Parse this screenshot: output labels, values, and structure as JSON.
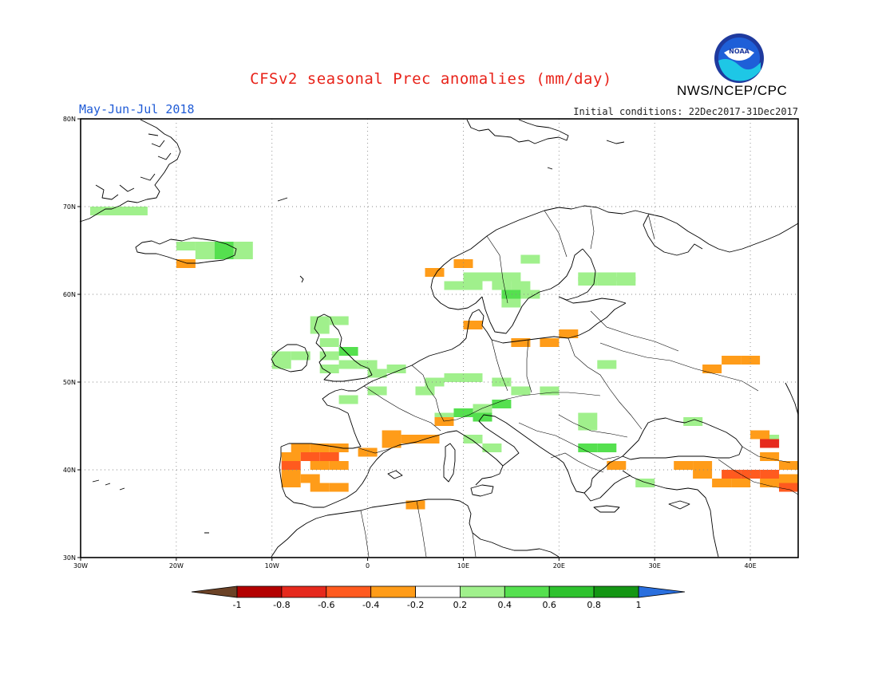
{
  "header": {
    "title": "CFSv2 seasonal Prec anomalies (mm/day)",
    "period": "May-Jun-Jul 2018",
    "initial_conditions": "Initial conditions: 22Dec2017-31Dec2017",
    "agency": "NWS/NCEP/CPC",
    "logo_text": "NOAA",
    "logo_icon": "noaa-logo-icon"
  },
  "map": {
    "lon_range": [
      -30,
      45
    ],
    "lat_range": [
      30,
      80
    ],
    "lat_ticks": [
      {
        "value": 80,
        "label": "80N"
      },
      {
        "value": 70,
        "label": "70N"
      },
      {
        "value": 60,
        "label": "60N"
      },
      {
        "value": 50,
        "label": "50N"
      },
      {
        "value": 40,
        "label": "40N"
      },
      {
        "value": 30,
        "label": "30N"
      }
    ],
    "lon_ticks": [
      {
        "value": -30,
        "label": "30W"
      },
      {
        "value": -20,
        "label": "20W"
      },
      {
        "value": -10,
        "label": "10W"
      },
      {
        "value": 0,
        "label": "0"
      },
      {
        "value": 10,
        "label": "10E"
      },
      {
        "value": 20,
        "label": "20E"
      },
      {
        "value": 30,
        "label": "30E"
      },
      {
        "value": 40,
        "label": "40E"
      }
    ],
    "grid": "dotted",
    "anomaly_cells": [
      {
        "lon": -28,
        "lat": 69.5,
        "cat": "p1"
      },
      {
        "lon": -26,
        "lat": 69.5,
        "cat": "p1"
      },
      {
        "lon": -24,
        "lat": 69.5,
        "cat": "p1"
      },
      {
        "lon": -19,
        "lat": 65.5,
        "cat": "p1"
      },
      {
        "lon": -17,
        "lat": 65.5,
        "cat": "p1"
      },
      {
        "lon": -15,
        "lat": 65.5,
        "cat": "p2"
      },
      {
        "lon": -13,
        "lat": 65.5,
        "cat": "p1"
      },
      {
        "lon": -17,
        "lat": 64.5,
        "cat": "p1"
      },
      {
        "lon": -15,
        "lat": 64.5,
        "cat": "p2"
      },
      {
        "lon": -13,
        "lat": 64.5,
        "cat": "p1"
      },
      {
        "lon": -19,
        "lat": 63.5,
        "cat": "n1"
      },
      {
        "lon": 7,
        "lat": 62.5,
        "cat": "n1"
      },
      {
        "lon": 10,
        "lat": 63.5,
        "cat": "n1"
      },
      {
        "lon": 9,
        "lat": 61,
        "cat": "p1"
      },
      {
        "lon": 11,
        "lat": 61,
        "cat": "p1"
      },
      {
        "lon": 11,
        "lat": 62,
        "cat": "p1"
      },
      {
        "lon": 13,
        "lat": 62,
        "cat": "p1"
      },
      {
        "lon": 14,
        "lat": 61,
        "cat": "p1"
      },
      {
        "lon": 16,
        "lat": 61,
        "cat": "p1"
      },
      {
        "lon": 15,
        "lat": 62,
        "cat": "p1"
      },
      {
        "lon": 15,
        "lat": 60,
        "cat": "p2"
      },
      {
        "lon": 17,
        "lat": 60,
        "cat": "p1"
      },
      {
        "lon": 15,
        "lat": 59,
        "cat": "p1"
      },
      {
        "lon": 17,
        "lat": 64,
        "cat": "p1"
      },
      {
        "lon": 23,
        "lat": 62,
        "cat": "p1"
      },
      {
        "lon": 25,
        "lat": 62,
        "cat": "p1"
      },
      {
        "lon": 27,
        "lat": 62,
        "cat": "p1"
      },
      {
        "lon": 23,
        "lat": 61.5,
        "cat": "p1"
      },
      {
        "lon": 25,
        "lat": 61.5,
        "cat": "p1"
      },
      {
        "lon": 27,
        "lat": 61.5,
        "cat": "p1"
      },
      {
        "lon": 11,
        "lat": 56.5,
        "cat": "n1"
      },
      {
        "lon": -7,
        "lat": 53,
        "cat": "p1"
      },
      {
        "lon": -9,
        "lat": 53,
        "cat": "p1"
      },
      {
        "lon": -9,
        "lat": 52,
        "cat": "p1"
      },
      {
        "lon": -5,
        "lat": 57,
        "cat": "p1"
      },
      {
        "lon": -3,
        "lat": 57,
        "cat": "p1"
      },
      {
        "lon": -5,
        "lat": 56,
        "cat": "p1"
      },
      {
        "lon": -4,
        "lat": 54.5,
        "cat": "p1"
      },
      {
        "lon": -2,
        "lat": 53.5,
        "cat": "p2"
      },
      {
        "lon": -4,
        "lat": 53,
        "cat": "p1"
      },
      {
        "lon": -2,
        "lat": 52,
        "cat": "p1"
      },
      {
        "lon": 0,
        "lat": 52,
        "cat": "p1"
      },
      {
        "lon": -4,
        "lat": 51.5,
        "cat": "p1"
      },
      {
        "lon": 1,
        "lat": 51,
        "cat": "p1"
      },
      {
        "lon": 3,
        "lat": 51.5,
        "cat": "p1"
      },
      {
        "lon": -2,
        "lat": 48,
        "cat": "p1"
      },
      {
        "lon": 1,
        "lat": 49,
        "cat": "p1"
      },
      {
        "lon": 7,
        "lat": 50,
        "cat": "p1"
      },
      {
        "lon": 9,
        "lat": 50.5,
        "cat": "p1"
      },
      {
        "lon": 11,
        "lat": 50.5,
        "cat": "p1"
      },
      {
        "lon": 6,
        "lat": 49,
        "cat": "p1"
      },
      {
        "lon": 14,
        "lat": 50,
        "cat": "p1"
      },
      {
        "lon": 16,
        "lat": 49,
        "cat": "p1"
      },
      {
        "lon": 14,
        "lat": 47.5,
        "cat": "p2"
      },
      {
        "lon": 12,
        "lat": 47,
        "cat": "p1"
      },
      {
        "lon": 10,
        "lat": 46.5,
        "cat": "p2"
      },
      {
        "lon": 12,
        "lat": 46,
        "cat": "p2"
      },
      {
        "lon": 8,
        "lat": 46,
        "cat": "p1"
      },
      {
        "lon": 11,
        "lat": 43.5,
        "cat": "p1"
      },
      {
        "lon": 13,
        "lat": 42.5,
        "cat": "p1"
      },
      {
        "lon": 19,
        "lat": 49,
        "cat": "p1"
      },
      {
        "lon": 25,
        "lat": 52,
        "cat": "p1"
      },
      {
        "lon": 23,
        "lat": 46,
        "cat": "p1"
      },
      {
        "lon": 23,
        "lat": 45,
        "cat": "p1"
      },
      {
        "lon": 23,
        "lat": 42.5,
        "cat": "p2"
      },
      {
        "lon": 25,
        "lat": 42.5,
        "cat": "p2"
      },
      {
        "lon": 29,
        "lat": 38.5,
        "cat": "p1"
      },
      {
        "lon": 34,
        "lat": 45.5,
        "cat": "p1"
      },
      {
        "lon": 42,
        "lat": 43.5,
        "cat": "p1"
      },
      {
        "lon": 16,
        "lat": 54.5,
        "cat": "n1"
      },
      {
        "lon": 19,
        "lat": 54.5,
        "cat": "n1"
      },
      {
        "lon": 21,
        "lat": 55.5,
        "cat": "n1"
      },
      {
        "lon": -7,
        "lat": 42.5,
        "cat": "n1"
      },
      {
        "lon": -5,
        "lat": 42.5,
        "cat": "n1"
      },
      {
        "lon": -3,
        "lat": 42.5,
        "cat": "n1"
      },
      {
        "lon": -8,
        "lat": 41.5,
        "cat": "n1"
      },
      {
        "lon": -6,
        "lat": 41.5,
        "cat": "n3"
      },
      {
        "lon": -4,
        "lat": 41.5,
        "cat": "n3"
      },
      {
        "lon": -8,
        "lat": 40.5,
        "cat": "n3"
      },
      {
        "lon": -5,
        "lat": 40.5,
        "cat": "n1"
      },
      {
        "lon": -3,
        "lat": 40.5,
        "cat": "n1"
      },
      {
        "lon": -8,
        "lat": 39.5,
        "cat": "n1"
      },
      {
        "lon": -8,
        "lat": 38.5,
        "cat": "n1"
      },
      {
        "lon": -6,
        "lat": 39,
        "cat": "n1"
      },
      {
        "lon": -5,
        "lat": 38,
        "cat": "n1"
      },
      {
        "lon": -3,
        "lat": 38,
        "cat": "n1"
      },
      {
        "lon": 0,
        "lat": 42,
        "cat": "n1"
      },
      {
        "lon": 2.5,
        "lat": 44,
        "cat": "n1"
      },
      {
        "lon": 2.5,
        "lat": 43,
        "cat": "n1"
      },
      {
        "lon": 4.5,
        "lat": 43.5,
        "cat": "n1"
      },
      {
        "lon": 6.5,
        "lat": 43.5,
        "cat": "n1"
      },
      {
        "lon": 8,
        "lat": 45.5,
        "cat": "n1"
      },
      {
        "lon": 5,
        "lat": 36,
        "cat": "n1"
      },
      {
        "lon": 26,
        "lat": 40.5,
        "cat": "n1"
      },
      {
        "lon": 36,
        "lat": 51.5,
        "cat": "n1"
      },
      {
        "lon": 38,
        "lat": 52.5,
        "cat": "n1"
      },
      {
        "lon": 40,
        "lat": 52.5,
        "cat": "n1"
      },
      {
        "lon": 33,
        "lat": 40.5,
        "cat": "n1"
      },
      {
        "lon": 35,
        "lat": 40.5,
        "cat": "n1"
      },
      {
        "lon": 35,
        "lat": 39.5,
        "cat": "n1"
      },
      {
        "lon": 37,
        "lat": 38.5,
        "cat": "n1"
      },
      {
        "lon": 39,
        "lat": 38.5,
        "cat": "n1"
      },
      {
        "lon": 38,
        "lat": 39.5,
        "cat": "n3"
      },
      {
        "lon": 40,
        "lat": 39.5,
        "cat": "n3"
      },
      {
        "lon": 42,
        "lat": 39.5,
        "cat": "n3"
      },
      {
        "lon": 42,
        "lat": 38.5,
        "cat": "n1"
      },
      {
        "lon": 44,
        "lat": 39,
        "cat": "n1"
      },
      {
        "lon": 44,
        "lat": 38,
        "cat": "n3"
      },
      {
        "lon": 44,
        "lat": 40.5,
        "cat": "n1"
      },
      {
        "lon": 42,
        "lat": 41.5,
        "cat": "n1"
      },
      {
        "lon": 41,
        "lat": 44,
        "cat": "n1"
      },
      {
        "lon": 42,
        "lat": 43,
        "cat": "n4"
      }
    ]
  },
  "colorbar": {
    "labels": [
      "-1",
      "-0.8",
      "-0.6",
      "-0.4",
      "-0.2",
      "0.2",
      "0.4",
      "0.6",
      "0.8",
      "1"
    ],
    "colors": [
      "#b30000",
      "#e6291d",
      "#ff5a1f",
      "#ff9c19",
      "#ffffff",
      "#a0f08c",
      "#55e04f",
      "#2ec22e",
      "#149614"
    ],
    "low_color": "#6b4226",
    "high_color": "#2a6fde",
    "categories": {
      "n4": "#e6291d",
      "n3": "#ff5a1f",
      "n1": "#ff9c19",
      "p1": "#a0f08c",
      "p2": "#55e04f"
    }
  }
}
